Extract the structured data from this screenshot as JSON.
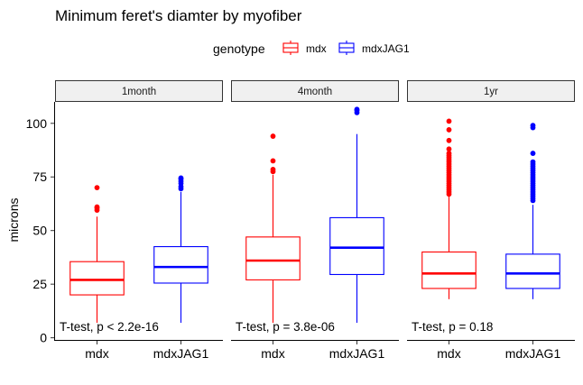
{
  "chart_data": {
    "type": "boxplot",
    "title": "Minimum feret's diamter by myofiber",
    "ylabel": "microns",
    "xlabel": "",
    "ylim": [
      -1,
      110
    ],
    "yticks": [
      0,
      25,
      50,
      75,
      100
    ],
    "categories": [
      "mdx",
      "mdxJAG1"
    ],
    "legend": {
      "title": "genotype",
      "position": "top",
      "entries": [
        {
          "name": "mdx",
          "color": "#ff0000"
        },
        {
          "name": "mdxJAG1",
          "color": "#0000ff"
        }
      ]
    },
    "panels": [
      {
        "strip": "1month",
        "annotation": "T-test, p < 2.2e-16",
        "boxes": [
          {
            "category": "mdx",
            "color": "#ff0000",
            "whisker_low": 7,
            "q1": 20,
            "median": 27,
            "q3": 35.5,
            "whisker_high": 56.5,
            "outliers": [
              59.5,
              60.5,
              61,
              70
            ]
          },
          {
            "category": "mdxJAG1",
            "color": "#0000ff",
            "whisker_low": 7,
            "q1": 25.5,
            "median": 33,
            "q3": 42.5,
            "whisker_high": 68,
            "outliers": [
              69.5,
              70.5,
              72,
              73,
              74,
              74.5
            ]
          }
        ]
      },
      {
        "strip": "4month",
        "annotation": "T-test, p = 3.8e-06",
        "boxes": [
          {
            "category": "mdx",
            "color": "#ff0000",
            "whisker_low": 7,
            "q1": 27,
            "median": 36,
            "q3": 47,
            "whisker_high": 76,
            "outliers": [
              77.5,
              78.5,
              82.5,
              94
            ]
          },
          {
            "category": "mdxJAG1",
            "color": "#0000ff",
            "whisker_low": 7,
            "q1": 29.5,
            "median": 42,
            "q3": 56,
            "whisker_high": 95,
            "outliers": [
              105,
              106,
              106.5
            ]
          }
        ]
      },
      {
        "strip": "1yr",
        "annotation": "T-test, p = 0.18",
        "boxes": [
          {
            "category": "mdx",
            "color": "#ff0000",
            "whisker_low": 18,
            "q1": 23,
            "median": 30,
            "q3": 40,
            "whisker_high": 66,
            "outliers": [
              67,
              68,
              69,
              70,
              71,
              72,
              73,
              74,
              75,
              76,
              77,
              78,
              79,
              80,
              81,
              82,
              83,
              84,
              85,
              86,
              88,
              92,
              97,
              101
            ]
          },
          {
            "category": "mdxJAG1",
            "color": "#0000ff",
            "whisker_low": 18,
            "q1": 23,
            "median": 30,
            "q3": 39,
            "whisker_high": 62,
            "outliers": [
              64,
              65,
              66,
              67,
              68,
              69,
              70,
              71,
              72,
              73,
              74,
              75,
              76,
              77,
              78,
              79,
              80,
              81,
              82,
              86,
              98,
              99
            ]
          }
        ]
      }
    ]
  }
}
